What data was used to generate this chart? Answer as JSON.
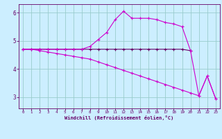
{
  "xlabel": "Windchill (Refroidissement éolien,°C)",
  "bg_color": "#cceeff",
  "grid_color": "#99cccc",
  "line_color1": "#660066",
  "line_color2": "#cc00cc",
  "x_ticks": [
    0,
    1,
    2,
    3,
    4,
    5,
    6,
    7,
    8,
    9,
    10,
    11,
    12,
    13,
    14,
    15,
    16,
    17,
    18,
    19,
    20,
    21,
    22,
    23
  ],
  "ylim": [
    2.6,
    6.3
  ],
  "xlim": [
    -0.5,
    23.5
  ],
  "series1_x": [
    0,
    1,
    2,
    3,
    4,
    5,
    6,
    7,
    8,
    9,
    10,
    11,
    12,
    13,
    14,
    15,
    16,
    17,
    18,
    19,
    20
  ],
  "series1_y": [
    4.7,
    4.7,
    4.7,
    4.7,
    4.7,
    4.7,
    4.7,
    4.7,
    4.7,
    4.7,
    4.7,
    4.7,
    4.7,
    4.7,
    4.7,
    4.7,
    4.7,
    4.7,
    4.7,
    4.7,
    4.65
  ],
  "series2_x": [
    0,
    1,
    2,
    3,
    4,
    5,
    6,
    7,
    8,
    9,
    10,
    11,
    12,
    13,
    14,
    15,
    16,
    17,
    18,
    19,
    20,
    21,
    22,
    23
  ],
  "series2_y": [
    4.7,
    4.7,
    4.7,
    4.7,
    4.7,
    4.7,
    4.7,
    4.7,
    4.8,
    5.05,
    5.3,
    5.75,
    6.05,
    5.8,
    5.8,
    5.8,
    5.75,
    5.65,
    5.6,
    5.5,
    4.65,
    3.05,
    3.75,
    2.95
  ],
  "series3_x": [
    0,
    1,
    2,
    3,
    4,
    5,
    6,
    7,
    8,
    9,
    10,
    11,
    12,
    13,
    14,
    15,
    16,
    17,
    18,
    19,
    20,
    21,
    22,
    23
  ],
  "series3_y": [
    4.7,
    4.7,
    4.65,
    4.6,
    4.55,
    4.5,
    4.45,
    4.4,
    4.35,
    4.25,
    4.15,
    4.05,
    3.95,
    3.85,
    3.75,
    3.65,
    3.55,
    3.45,
    3.35,
    3.25,
    3.15,
    3.05,
    3.75,
    2.95
  ]
}
